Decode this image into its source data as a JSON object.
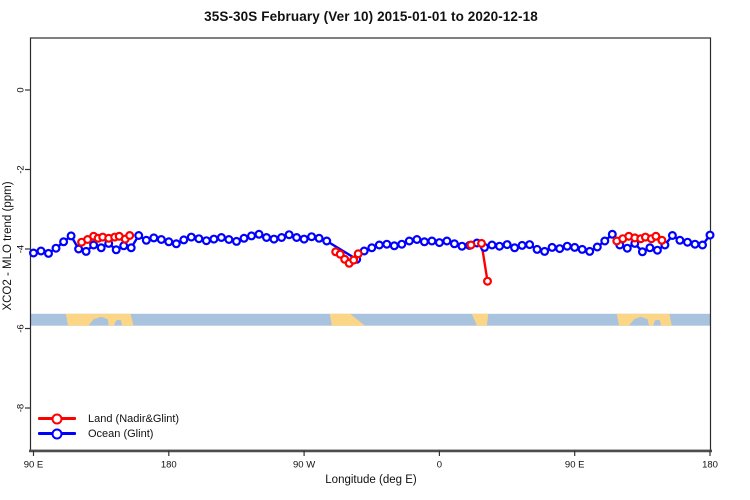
{
  "title": "35S-30S February (Ver 10)   2015-01-01 to 2020-12-18",
  "legend": {
    "items": [
      {
        "label": "Land (Nadir&Glint)",
        "color": "#ff0000"
      },
      {
        "label": "Ocean (Glint)",
        "color": "#0000ff"
      }
    ]
  },
  "chart_data": {
    "type": "line",
    "title": "35S-30S February (Ver 10)   2015-01-01 to 2020-12-18",
    "xlabel": "Longitude (deg E)",
    "ylabel": "XCO2 - MLO trend (ppm)",
    "x_axis_note": "x is longitude starting at 90E wrapping eastward to 180 (90E=90 ... 0=360 ... 180=540)",
    "xlim": [
      90,
      540
    ],
    "ylim": [
      -9.1,
      1.3
    ],
    "grid": false,
    "legend_position": "bottom-left",
    "x_ticks": [
      {
        "pos": 90,
        "label": "90 E"
      },
      {
        "pos": 180,
        "label": "180"
      },
      {
        "pos": 270,
        "label": "90 W"
      },
      {
        "pos": 360,
        "label": "0"
      },
      {
        "pos": 450,
        "label": "90 E"
      },
      {
        "pos": 540,
        "label": "180"
      }
    ],
    "y_ticks": [
      {
        "pos": 0,
        "label": "0"
      },
      {
        "pos": -2,
        "label": "-2"
      },
      {
        "pos": -4,
        "label": "-4"
      },
      {
        "pos": -6,
        "label": "-6"
      },
      {
        "pos": -8,
        "label": "-8"
      }
    ],
    "series": [
      {
        "name": "Ocean (Glint)",
        "color": "#0000ff",
        "marker": "open-circle",
        "x_start": 90,
        "x_step": 5,
        "y": [
          -4.1,
          -4.05,
          -4.11,
          -3.98,
          -3.82,
          -3.67,
          -4.0,
          -4.06,
          -3.9,
          -3.97,
          -3.86,
          -4.02,
          -3.92,
          -3.97,
          -3.66,
          -3.78,
          -3.72,
          -3.76,
          -3.82,
          -3.87,
          -3.77,
          -3.7,
          -3.74,
          -3.79,
          -3.75,
          -3.71,
          -3.76,
          -3.81,
          -3.73,
          -3.67,
          -3.63,
          -3.71,
          -3.75,
          -3.71,
          -3.64,
          -3.71,
          -3.75,
          -3.69,
          -3.73,
          -3.8,
          null,
          null,
          null,
          -4.26,
          -4.05,
          -3.97,
          -3.9,
          -3.88,
          -3.92,
          -3.88,
          -3.8,
          -3.76,
          -3.82,
          -3.8,
          -3.84,
          -3.8,
          -3.87,
          -3.93,
          -3.91,
          -3.85,
          -3.96,
          -3.9,
          -3.93,
          -3.89,
          -3.97,
          -3.91,
          -3.89,
          -4.01,
          -4.06,
          -3.96,
          -3.99,
          -3.93,
          -3.96,
          -4.01,
          -4.06,
          -3.95,
          -3.8,
          -3.63,
          -3.9,
          -3.98,
          -3.86,
          -4.07,
          -3.97,
          -4.03,
          -3.9,
          -3.66,
          -3.78,
          -3.83,
          -3.88,
          -3.9,
          -3.65
        ]
      },
      {
        "name": "Land (Nadir&Glint)",
        "color": "#ff0000",
        "marker": "open-circle",
        "segments": [
          {
            "region": "Australia (west pass)",
            "x": [
              122,
              126,
              130,
              133,
              136,
              140,
              144,
              147,
              151,
              154
            ],
            "y": [
              -3.83,
              -3.76,
              -3.68,
              -3.73,
              -3.7,
              -3.73,
              -3.7,
              -3.68,
              -3.75,
              -3.66
            ]
          },
          {
            "region": "South America",
            "x": [
              291,
              294,
              297,
              300,
              303,
              306
            ],
            "y": [
              -4.07,
              -4.13,
              -4.26,
              -4.36,
              -4.28,
              -4.12
            ]
          },
          {
            "region": "Southern Africa",
            "x": [
              381,
              388,
              392
            ],
            "y": [
              -3.9,
              -3.86,
              -4.81
            ]
          },
          {
            "region": "Australia (east pass)",
            "x": [
              478,
              482,
              486,
              490,
              494,
              497,
              501,
              504,
              508
            ],
            "y": [
              -3.8,
              -3.74,
              -3.68,
              -3.72,
              -3.74,
              -3.7,
              -3.74,
              -3.68,
              -3.78
            ]
          }
        ]
      }
    ],
    "map_strip": {
      "description": "land/ocean locator band for the 35S-30S latitude zone",
      "y_top": -5.63,
      "y_bottom": -5.93,
      "ocean_color": "#a9c2de",
      "land_color": "#fbd687",
      "land_patches": [
        [
          [
            111.5,
            0
          ],
          [
            154.5,
            0
          ],
          [
            156.5,
            1
          ],
          [
            149,
            1
          ],
          [
            148,
            0.5
          ],
          [
            145,
            0.55
          ],
          [
            143.5,
            1
          ],
          [
            140,
            1
          ],
          [
            139.5,
            0.45
          ],
          [
            135,
            0.25
          ],
          [
            130,
            0.45
          ],
          [
            126.5,
            1
          ],
          [
            113,
            1
          ]
        ],
        [
          [
            287,
            0
          ],
          [
            300.5,
            0
          ],
          [
            310.5,
            1
          ],
          [
            288.5,
            1
          ]
        ],
        [
          [
            381.5,
            0
          ],
          [
            392.5,
            0
          ],
          [
            391.5,
            1
          ],
          [
            385,
            1
          ]
        ],
        [
          [
            478,
            0
          ],
          [
            513,
            0
          ],
          [
            514.5,
            1
          ],
          [
            507.5,
            1
          ],
          [
            506.5,
            0.5
          ],
          [
            503.5,
            0.55
          ],
          [
            502,
            1
          ],
          [
            499.5,
            1
          ],
          [
            498.5,
            0.45
          ],
          [
            494,
            0.25
          ],
          [
            489.5,
            0.45
          ],
          [
            486,
            1
          ],
          [
            479.5,
            1
          ]
        ]
      ]
    }
  }
}
